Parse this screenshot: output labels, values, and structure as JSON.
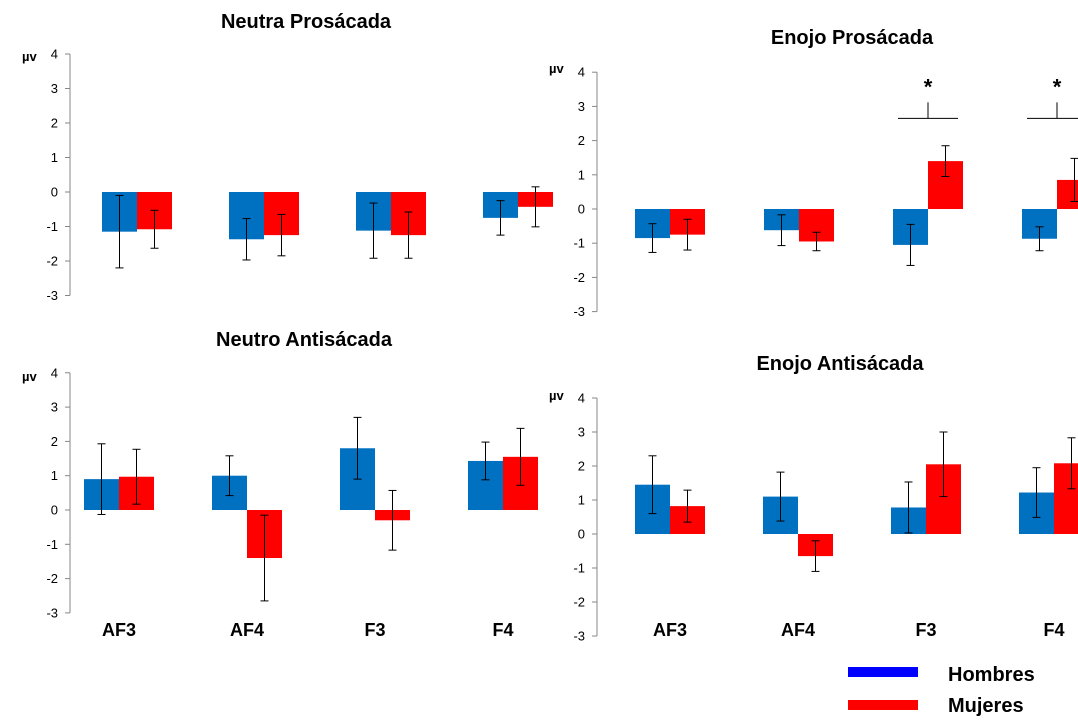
{
  "chart_data": [
    {
      "type": "bar",
      "title": "Neutra Prosácada",
      "unit_label": "µv",
      "categories": [
        "AF3",
        "AF4",
        "F3",
        "F4"
      ],
      "show_category_labels": false,
      "ylim": [
        -3,
        4
      ],
      "yticks": [
        "-3",
        "-2",
        "-1",
        "0",
        "1",
        "2",
        "3",
        "4"
      ],
      "series": [
        {
          "name": "Hombres",
          "values": [
            -1.15,
            -1.37,
            -1.12,
            -0.75
          ],
          "errors": [
            1.05,
            0.6,
            0.8,
            0.5
          ]
        },
        {
          "name": "Mujeres",
          "values": [
            -1.08,
            -1.25,
            -1.25,
            -0.43
          ],
          "errors": [
            0.55,
            0.6,
            0.67,
            0.58
          ]
        }
      ],
      "significance": []
    },
    {
      "type": "bar",
      "title": "Enojo Prosácada",
      "unit_label": "µv",
      "categories": [
        "AF3",
        "AF4",
        "F3",
        "F4"
      ],
      "show_category_labels": false,
      "ylim": [
        -3,
        4
      ],
      "yticks": [
        "-3",
        "-2",
        "-1",
        "0",
        "1",
        "2",
        "3",
        "4"
      ],
      "series": [
        {
          "name": "Hombres",
          "values": [
            -0.85,
            -0.62,
            -1.05,
            -0.87
          ],
          "errors": [
            0.42,
            0.45,
            0.6,
            0.35
          ]
        },
        {
          "name": "Mujeres",
          "values": [
            -0.75,
            -0.95,
            1.4,
            0.85
          ],
          "errors": [
            0.45,
            0.27,
            0.45,
            0.63
          ]
        }
      ],
      "significance": [
        {
          "category": "F3",
          "label": "*"
        },
        {
          "category": "F4",
          "label": "*"
        }
      ]
    },
    {
      "type": "bar",
      "title": "Neutro Antisácada",
      "unit_label": "µv",
      "categories": [
        "AF3",
        "AF4",
        "F3",
        "F4"
      ],
      "show_category_labels": true,
      "ylim": [
        -3,
        4
      ],
      "yticks": [
        "-3",
        "-2",
        "-1",
        "0",
        "1",
        "2",
        "3",
        "4"
      ],
      "series": [
        {
          "name": "Hombres",
          "values": [
            0.9,
            1.0,
            1.8,
            1.43
          ],
          "errors": [
            1.03,
            0.58,
            0.9,
            0.55
          ]
        },
        {
          "name": "Mujeres",
          "values": [
            0.97,
            -1.4,
            -0.3,
            1.55
          ],
          "errors": [
            0.8,
            1.25,
            0.87,
            0.83
          ]
        }
      ],
      "significance": []
    },
    {
      "type": "bar",
      "title": "Enojo Antisácada",
      "unit_label": "µv",
      "categories": [
        "AF3",
        "AF4",
        "F3",
        "F4"
      ],
      "show_category_labels": true,
      "ylim": [
        -3,
        4
      ],
      "yticks": [
        "-3",
        "-2",
        "-1",
        "0",
        "1",
        "2",
        "3",
        "4"
      ],
      "series": [
        {
          "name": "Hombres",
          "values": [
            1.45,
            1.1,
            0.78,
            1.22
          ],
          "errors": [
            0.85,
            0.72,
            0.75,
            0.73
          ]
        },
        {
          "name": "Mujeres",
          "values": [
            0.82,
            -0.65,
            2.05,
            2.08
          ],
          "errors": [
            0.47,
            0.45,
            0.95,
            0.75
          ]
        }
      ],
      "significance": []
    }
  ],
  "legend": {
    "items": [
      {
        "label": "Hombres",
        "color": "#0000ff"
      },
      {
        "label": "Mujeres",
        "color": "#ff0000"
      }
    ]
  },
  "colors": {
    "Hombres": "#0070c0",
    "Mujeres": "#ff0000"
  }
}
